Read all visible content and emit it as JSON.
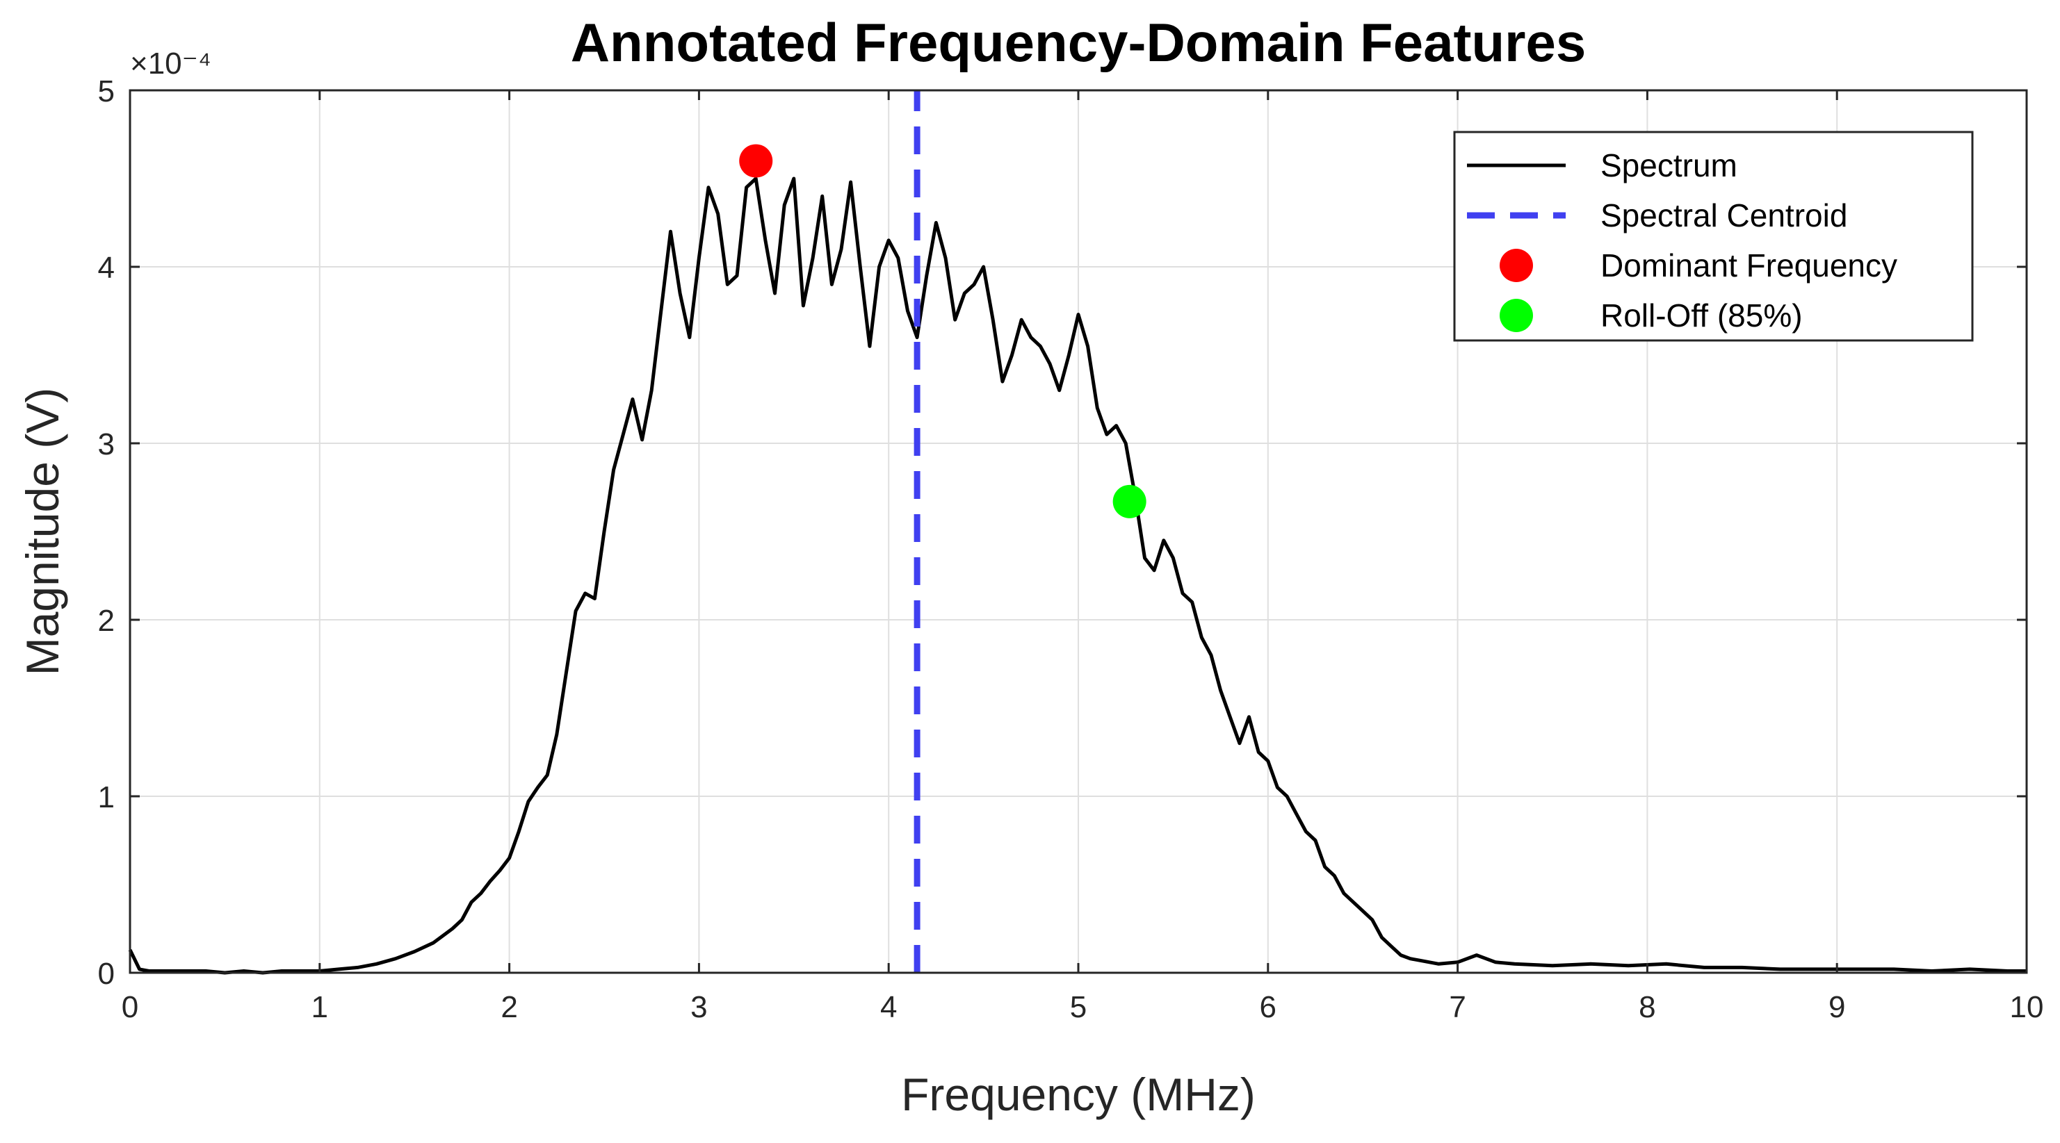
{
  "chart_data": {
    "type": "line",
    "title": "Annotated Frequency-Domain Features",
    "xlabel": "Frequency (MHz)",
    "ylabel": "Magnitude (V)",
    "exponent_label": "×10⁻⁴",
    "xlim": [
      0,
      10
    ],
    "ylim": [
      0,
      5
    ],
    "xticks": [
      "0",
      "1",
      "2",
      "3",
      "4",
      "5",
      "6",
      "7",
      "8",
      "9",
      "10"
    ],
    "yticks": [
      "0",
      "1",
      "2",
      "3",
      "4",
      "5"
    ],
    "grid": true,
    "legend_position": "top-right",
    "series": [
      {
        "name": "Spectrum",
        "color": "#000000",
        "style": "solid",
        "x": [
          0,
          0.05,
          0.1,
          0.2,
          0.3,
          0.4,
          0.5,
          0.6,
          0.7,
          0.8,
          0.9,
          1.0,
          1.1,
          1.2,
          1.3,
          1.4,
          1.5,
          1.6,
          1.7,
          1.75,
          1.8,
          1.85,
          1.9,
          1.95,
          2.0,
          2.05,
          2.1,
          2.15,
          2.2,
          2.25,
          2.3,
          2.35,
          2.4,
          2.45,
          2.5,
          2.55,
          2.6,
          2.65,
          2.7,
          2.75,
          2.8,
          2.85,
          2.9,
          2.95,
          3.0,
          3.05,
          3.1,
          3.15,
          3.2,
          3.25,
          3.3,
          3.35,
          3.4,
          3.45,
          3.5,
          3.55,
          3.6,
          3.65,
          3.7,
          3.75,
          3.8,
          3.85,
          3.9,
          3.95,
          4.0,
          4.05,
          4.1,
          4.15,
          4.2,
          4.25,
          4.3,
          4.35,
          4.4,
          4.45,
          4.5,
          4.55,
          4.6,
          4.65,
          4.7,
          4.75,
          4.8,
          4.85,
          4.9,
          4.95,
          5.0,
          5.05,
          5.1,
          5.15,
          5.2,
          5.25,
          5.3,
          5.35,
          5.4,
          5.45,
          5.5,
          5.55,
          5.6,
          5.65,
          5.7,
          5.75,
          5.8,
          5.85,
          5.9,
          5.95,
          6.0,
          6.05,
          6.1,
          6.15,
          6.2,
          6.25,
          6.3,
          6.35,
          6.4,
          6.45,
          6.5,
          6.55,
          6.6,
          6.65,
          6.7,
          6.75,
          6.8,
          6.9,
          7.0,
          7.1,
          7.2,
          7.3,
          7.5,
          7.7,
          7.9,
          8.1,
          8.3,
          8.5,
          8.7,
          8.9,
          9.1,
          9.3,
          9.5,
          9.7,
          9.9,
          10.0
        ],
        "y": [
          0.13,
          0.02,
          0.01,
          0.01,
          0.01,
          0.01,
          0.0,
          0.01,
          0.0,
          0.01,
          0.01,
          0.01,
          0.02,
          0.03,
          0.05,
          0.08,
          0.12,
          0.17,
          0.25,
          0.3,
          0.4,
          0.45,
          0.52,
          0.58,
          0.65,
          0.8,
          0.97,
          1.05,
          1.12,
          1.35,
          1.7,
          2.05,
          2.15,
          2.12,
          2.5,
          2.85,
          3.05,
          3.25,
          3.02,
          3.3,
          3.75,
          4.2,
          3.85,
          3.6,
          4.05,
          4.45,
          4.3,
          3.9,
          3.95,
          4.45,
          4.5,
          4.15,
          3.85,
          4.35,
          4.5,
          3.78,
          4.05,
          4.4,
          3.9,
          4.1,
          4.48,
          4.0,
          3.55,
          4.0,
          4.15,
          4.05,
          3.75,
          3.6,
          3.95,
          4.25,
          4.05,
          3.7,
          3.85,
          3.9,
          4.0,
          3.7,
          3.35,
          3.5,
          3.7,
          3.6,
          3.55,
          3.45,
          3.3,
          3.5,
          3.73,
          3.55,
          3.2,
          3.05,
          3.1,
          3.0,
          2.7,
          2.35,
          2.28,
          2.45,
          2.35,
          2.15,
          2.1,
          1.9,
          1.8,
          1.6,
          1.45,
          1.3,
          1.45,
          1.25,
          1.2,
          1.05,
          1.0,
          0.9,
          0.8,
          0.75,
          0.6,
          0.55,
          0.45,
          0.4,
          0.35,
          0.3,
          0.2,
          0.15,
          0.1,
          0.08,
          0.07,
          0.05,
          0.06,
          0.1,
          0.06,
          0.05,
          0.04,
          0.05,
          0.04,
          0.05,
          0.03,
          0.03,
          0.02,
          0.02,
          0.02,
          0.02,
          0.01,
          0.02,
          0.01,
          0.01
        ]
      },
      {
        "name": "Spectral Centroid",
        "color": "#4040f0",
        "style": "dashed",
        "x": [
          4.15,
          4.15
        ],
        "y": [
          0,
          5
        ]
      },
      {
        "name": "Dominant Frequency",
        "color": "#ff0000",
        "style": "marker",
        "x": [
          3.3
        ],
        "y": [
          4.6
        ]
      },
      {
        "name": "Roll-Off (85%)",
        "color": "#00ff00",
        "style": "marker",
        "x": [
          5.27
        ],
        "y": [
          2.67
        ]
      }
    ]
  }
}
